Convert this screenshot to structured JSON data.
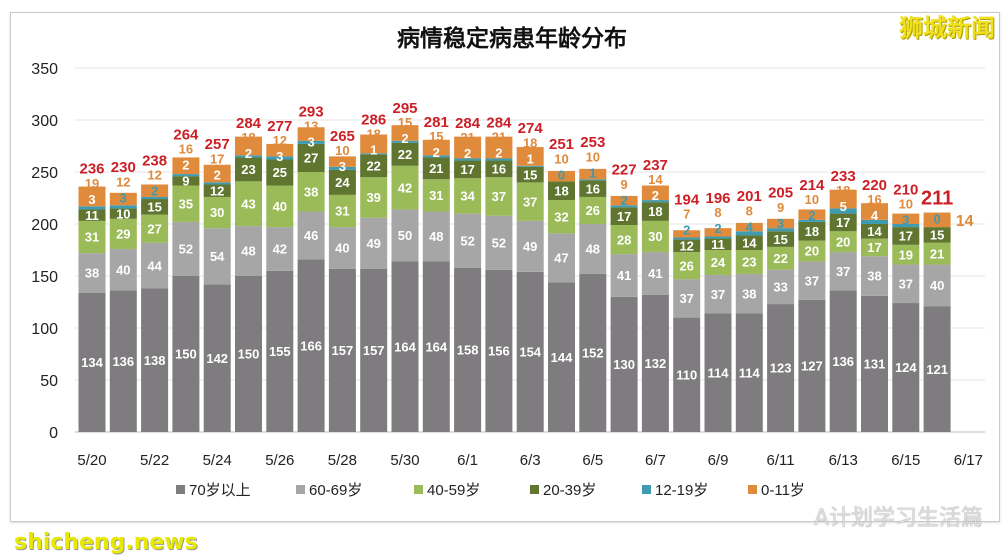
{
  "watermarks": {
    "top_right": "狮城新闻",
    "bottom_left": "shicheng.news",
    "bottom_right": "A计划学习生活篇"
  },
  "chart_data": {
    "type": "bar",
    "stacked": true,
    "title": "病情稳定病患年龄分布",
    "xlabel": "",
    "ylabel": "",
    "ylim": [
      0,
      350
    ],
    "yticks": [
      0,
      50,
      100,
      150,
      200,
      250,
      300,
      350
    ],
    "grid": true,
    "legend_position": "bottom",
    "categories": [
      "5/20",
      "5/21",
      "5/22",
      "5/23",
      "5/24",
      "5/25",
      "5/26",
      "5/27",
      "5/28",
      "5/29",
      "5/30",
      "5/31",
      "6/1",
      "6/2",
      "6/3",
      "6/4",
      "6/5",
      "6/6",
      "6/7",
      "6/8",
      "6/9",
      "6/10",
      "6/11",
      "6/12",
      "6/13",
      "6/14",
      "6/15",
      "6/16"
    ],
    "xtick_labels": [
      "5/20",
      "5/22",
      "5/24",
      "5/26",
      "5/28",
      "5/30",
      "6/1",
      "6/3",
      "6/5",
      "6/7",
      "6/9",
      "6/11",
      "6/13",
      "6/15",
      "6/17"
    ],
    "series": [
      {
        "name": "70岁以上",
        "color": "#7f7c7f",
        "values": [
          134,
          136,
          138,
          150,
          142,
          150,
          155,
          166,
          157,
          157,
          164,
          164,
          158,
          156,
          154,
          144,
          152,
          130,
          132,
          110,
          114,
          114,
          123,
          127,
          136,
          131,
          124,
          121
        ]
      },
      {
        "name": "60-69岁",
        "color": "#a6a6a6",
        "values": [
          38,
          40,
          44,
          52,
          54,
          48,
          42,
          46,
          40,
          49,
          50,
          48,
          52,
          52,
          49,
          47,
          48,
          41,
          41,
          37,
          37,
          38,
          33,
          37,
          37,
          38,
          37,
          40
        ]
      },
      {
        "name": "40-59岁",
        "color": "#9bbb59",
        "values": [
          31,
          29,
          27,
          35,
          30,
          43,
          40,
          38,
          31,
          39,
          42,
          31,
          34,
          37,
          37,
          32,
          26,
          28,
          30,
          26,
          24,
          23,
          22,
          20,
          20,
          17,
          19,
          21
        ]
      },
      {
        "name": "20-39岁",
        "color": "#5f7530",
        "values": [
          11,
          10,
          15,
          9,
          12,
          23,
          25,
          27,
          24,
          22,
          22,
          21,
          17,
          16,
          15,
          18,
          16,
          17,
          18,
          12,
          11,
          14,
          15,
          18,
          17,
          14,
          17,
          15
        ]
      },
      {
        "name": "12-19岁",
        "color": "#3f9bb0",
        "values": [
          3,
          3,
          2,
          2,
          2,
          2,
          3,
          3,
          3,
          1,
          2,
          2,
          2,
          2,
          1,
          0,
          1,
          2,
          2,
          2,
          2,
          4,
          3,
          2,
          5,
          4,
          3,
          0
        ]
      },
      {
        "name": "0-11岁",
        "color": "#e08a3c",
        "values": [
          19,
          12,
          12,
          16,
          17,
          18,
          12,
          13,
          10,
          18,
          15,
          15,
          21,
          21,
          18,
          10,
          10,
          9,
          14,
          7,
          8,
          8,
          9,
          10,
          18,
          16,
          10,
          14
        ]
      }
    ],
    "totals": [
      236,
      230,
      238,
      264,
      257,
      284,
      277,
      293,
      265,
      286,
      295,
      281,
      284,
      284,
      274,
      251,
      253,
      227,
      237,
      194,
      196,
      201,
      205,
      214,
      233,
      220,
      210,
      211
    ],
    "total_color": "#cc1f26"
  }
}
